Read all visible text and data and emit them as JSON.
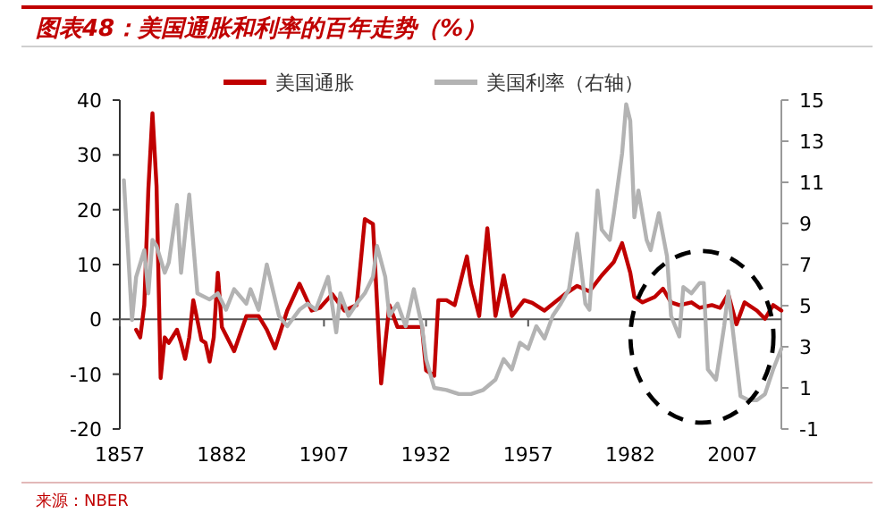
{
  "chart_data": {
    "type": "line",
    "title": "图表48：美国通胀和利率的百年走势（%）",
    "annotations": [
      "来源：NBER"
    ],
    "legend": "top",
    "xlim": [
      1857,
      2019
    ],
    "xticks": [
      1857,
      1882,
      1907,
      1932,
      1957,
      1982,
      2007
    ],
    "ylim": [
      -20,
      40
    ],
    "yticks": [
      -20,
      -10,
      0,
      10,
      20,
      30,
      40
    ],
    "y2lim": [
      -1,
      15
    ],
    "y2ticks": [
      -1,
      1,
      3,
      5,
      7,
      9,
      11,
      13,
      15
    ],
    "series": [
      {
        "name": "美国通胀",
        "color": "#c00000",
        "x": [
          1861,
          1862,
          1863,
          1864,
          1865,
          1866,
          1867,
          1868,
          1869,
          1871,
          1872,
          1873,
          1874,
          1875,
          1877,
          1878,
          1879,
          1880,
          1881,
          1882,
          1885,
          1888,
          1891,
          1893,
          1895,
          1898,
          1901,
          1904,
          1906,
          1909,
          1912,
          1915,
          1917,
          1919,
          1921,
          1923,
          1925,
          1928,
          1931,
          1932,
          1934,
          1935,
          1937,
          1939,
          1942,
          1943,
          1945,
          1947,
          1949,
          1951,
          1953,
          1956,
          1958,
          1961,
          1966,
          1969,
          1972,
          1975,
          1978,
          1980,
          1982,
          1983,
          1985,
          1988,
          1990,
          1992,
          1994,
          1997,
          1999,
          2002,
          2004,
          2006,
          2008,
          2010,
          2013,
          2015,
          2017,
          2019
        ],
        "values": [
          -1.9,
          -3.3,
          2.6,
          23.8,
          37.6,
          24.3,
          -10.7,
          -3.3,
          -4.3,
          -1.9,
          -4.3,
          -7.2,
          -3.3,
          3.5,
          -3.8,
          -4.3,
          -7.7,
          -3.3,
          8.5,
          -1.4,
          -5.8,
          0.6,
          0.6,
          -1.9,
          -5.3,
          1.6,
          6.5,
          1.6,
          2.1,
          4.6,
          1.6,
          2.6,
          18.3,
          17.4,
          -11.7,
          2.6,
          -1.4,
          -1.4,
          -1.4,
          -9.3,
          -10.3,
          3.5,
          3.5,
          2.6,
          11.5,
          6.5,
          0.6,
          16.6,
          0.6,
          8.0,
          0.6,
          3.5,
          3.0,
          1.6,
          4.6,
          6.1,
          5.1,
          8.0,
          10.5,
          13.9,
          8.5,
          4.1,
          3.1,
          4.1,
          5.6,
          3.1,
          2.6,
          3.1,
          2.1,
          2.6,
          2.1,
          4.6,
          -0.9,
          3.1,
          1.6,
          0.1,
          2.6,
          1.6
        ]
      },
      {
        "name": "美国利率（右轴）",
        "color": "#b3b3b3",
        "axis": "y2",
        "x": [
          1858,
          1860,
          1861,
          1863,
          1864,
          1865,
          1866,
          1868,
          1869,
          1871,
          1872,
          1874,
          1876,
          1879,
          1881,
          1883,
          1885,
          1888,
          1889,
          1891,
          1893,
          1896,
          1898,
          1901,
          1903,
          1905,
          1908,
          1910,
          1911,
          1913,
          1915,
          1917,
          1919,
          1920,
          1922,
          1923,
          1925,
          1927,
          1929,
          1931,
          1932,
          1934,
          1937,
          1940,
          1943,
          1946,
          1949,
          1951,
          1953,
          1955,
          1957,
          1959,
          1961,
          1963,
          1965,
          1967,
          1969,
          1971,
          1972,
          1974,
          1975,
          1977,
          1978,
          1980,
          1981,
          1982,
          1983,
          1984,
          1986,
          1987,
          1989,
          1991,
          1992,
          1994,
          1995,
          1997,
          1999,
          2000,
          2001,
          2003,
          2005,
          2006,
          2007,
          2009,
          2011,
          2013,
          2015,
          2017,
          2019
        ],
        "values": [
          11.1,
          4.3,
          6.4,
          7.7,
          5.6,
          8.2,
          7.9,
          6.6,
          7.1,
          9.9,
          6.6,
          10.4,
          5.6,
          5.3,
          5.6,
          4.8,
          5.8,
          5.1,
          5.8,
          4.8,
          7.0,
          4.5,
          4.0,
          4.8,
          5.1,
          4.8,
          6.4,
          3.7,
          5.6,
          4.5,
          5.1,
          5.6,
          6.4,
          7.9,
          6.4,
          4.5,
          5.1,
          4.0,
          5.8,
          4.0,
          2.4,
          1.0,
          0.9,
          0.7,
          0.7,
          0.9,
          1.4,
          2.4,
          1.9,
          3.2,
          2.9,
          4.0,
          3.4,
          4.5,
          5.1,
          5.8,
          8.5,
          5.1,
          4.8,
          10.6,
          8.7,
          8.2,
          9.5,
          12.4,
          14.8,
          14.0,
          9.3,
          10.6,
          8.2,
          7.7,
          9.5,
          7.4,
          4.5,
          3.5,
          5.9,
          5.6,
          6.1,
          6.1,
          1.9,
          1.4,
          4.0,
          5.7,
          4.0,
          0.6,
          0.4,
          0.4,
          0.7,
          1.9,
          2.9
        ]
      }
    ]
  }
}
